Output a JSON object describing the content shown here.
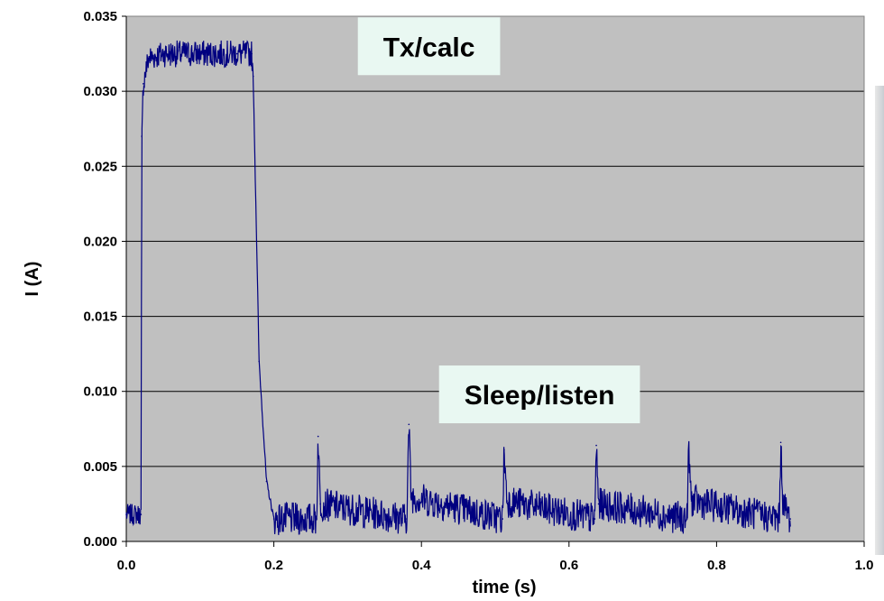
{
  "chart_data": {
    "type": "line",
    "title": "",
    "xlabel": "time (s)",
    "ylabel": "I (A)",
    "xlim": [
      0.0,
      1.0
    ],
    "ylim": [
      0.0,
      0.035
    ],
    "x_ticks": [
      "0.0",
      "0.2",
      "0.4",
      "0.6",
      "0.8",
      "1.0"
    ],
    "y_ticks": [
      "0.000",
      "0.005",
      "0.010",
      "0.015",
      "0.020",
      "0.025",
      "0.030",
      "0.035"
    ],
    "grid": "horizontal",
    "plot_background": "#c0c0c0",
    "series": [
      {
        "color": "#000080",
        "x": [
          0.0,
          0.02,
          0.021,
          0.023,
          0.03,
          0.05,
          0.1,
          0.15,
          0.17,
          0.172,
          0.18,
          0.19,
          0.2,
          0.258,
          0.26,
          0.263,
          0.38,
          0.383,
          0.386,
          0.51,
          0.512,
          0.516,
          0.635,
          0.637,
          0.64,
          0.76,
          0.762,
          0.766,
          0.885,
          0.887,
          0.89,
          0.9
        ],
        "y": [
          0.0018,
          0.0018,
          0.027,
          0.0305,
          0.0322,
          0.0325,
          0.0325,
          0.0325,
          0.0325,
          0.031,
          0.012,
          0.004,
          0.0015,
          0.0015,
          0.007,
          0.0025,
          0.0015,
          0.0078,
          0.003,
          0.0015,
          0.0061,
          0.0027,
          0.0015,
          0.0064,
          0.0025,
          0.0015,
          0.006,
          0.0027,
          0.0015,
          0.0066,
          0.0025,
          0.0015
        ]
      }
    ],
    "annotations": [
      {
        "text": "Tx/calc",
        "x": 0.255,
        "y": 0.033
      },
      {
        "text": "Sleep/listen",
        "x": 0.56,
        "y": 0.0098
      }
    ]
  }
}
